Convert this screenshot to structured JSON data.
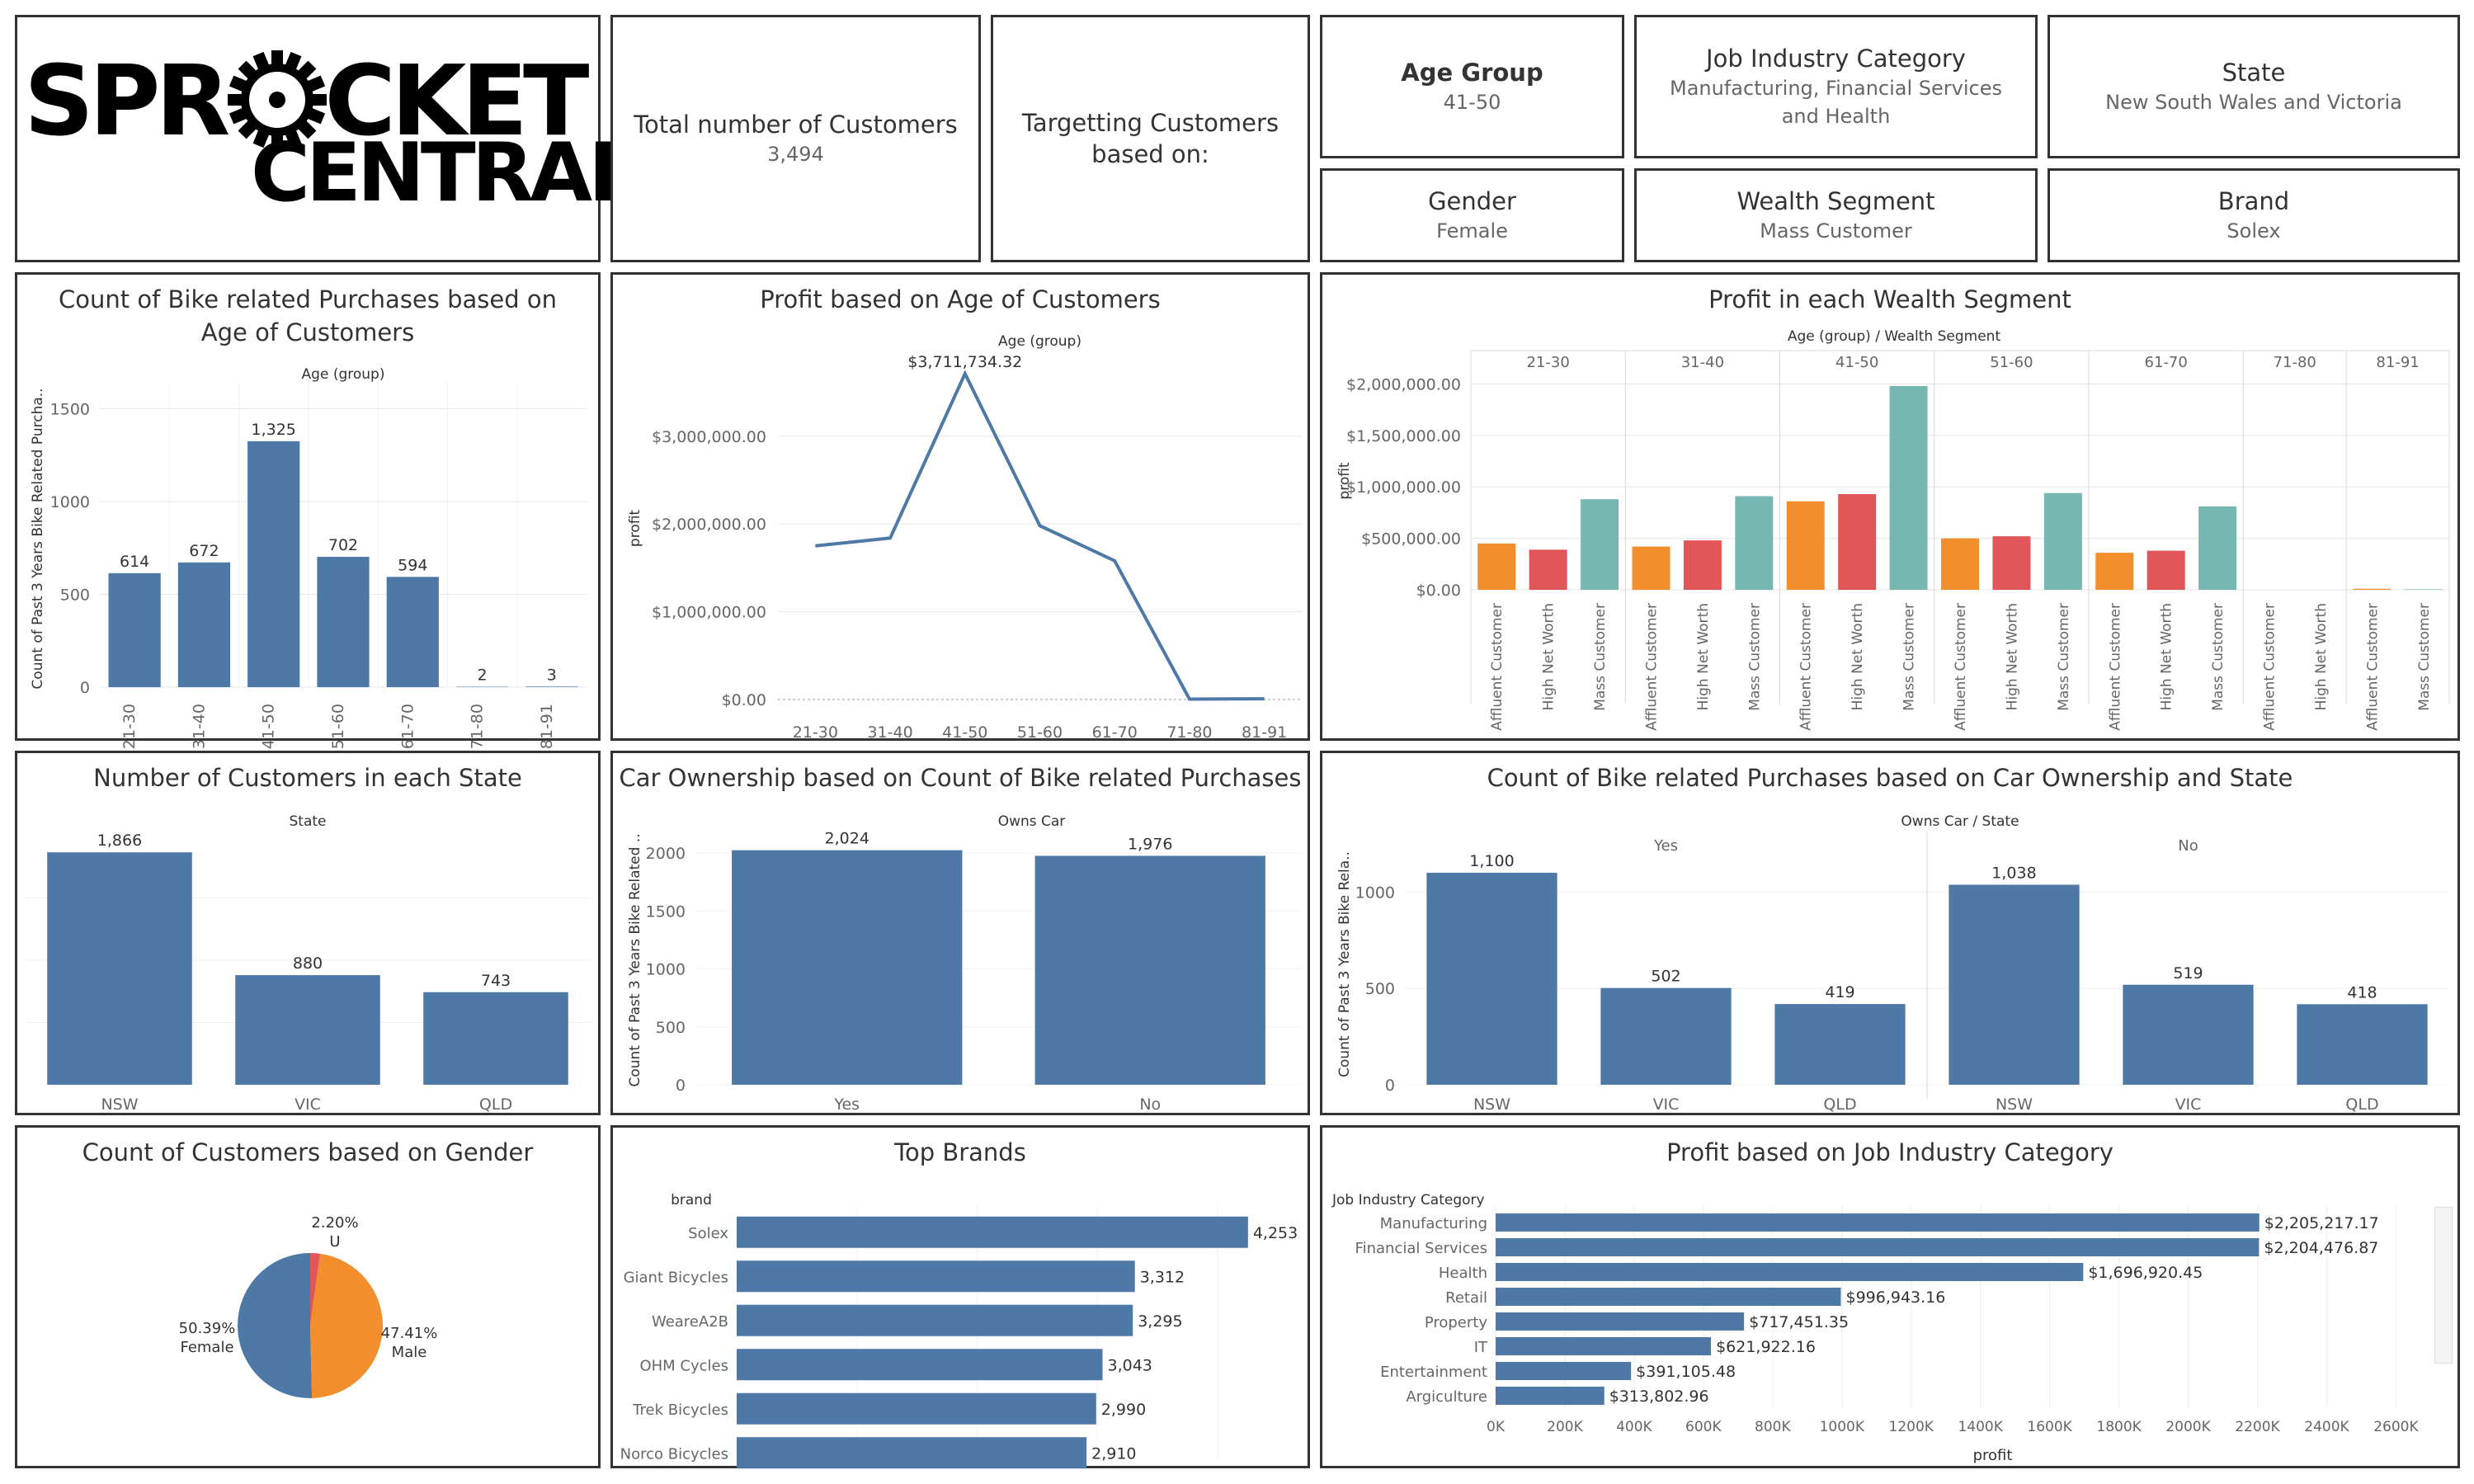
{
  "logo": {
    "line1_left": "SPR",
    "line1_right": "CKET",
    "line2": "CENTRAL"
  },
  "kpis": {
    "total_customers": {
      "label": "Total number of Customers",
      "value": "3,494"
    },
    "targeting": {
      "label": "Targetting Customers based on:"
    },
    "age_group": {
      "label": "Age Group",
      "value": "41-50"
    },
    "job_industry": {
      "label": "Job Industry Category",
      "value": "Manufacturing, Financial Services and Health"
    },
    "state": {
      "label": "State",
      "value": "New South Wales and Victoria"
    },
    "gender": {
      "label": "Gender",
      "value": "Female"
    },
    "wealth": {
      "label": "Wealth Segment",
      "value": "Mass Customer"
    },
    "brand": {
      "label": "Brand",
      "value": "Solex"
    }
  },
  "colors": {
    "blue": "#4e79a7",
    "orange": "#f28e2b",
    "red": "#e15759",
    "teal": "#76b7b2",
    "gridline": "#e6e6e6",
    "border": "#333333"
  },
  "chart_data": [
    {
      "id": "age_purchases",
      "type": "bar",
      "title": "Count of Bike related Purchases based on Age of Customers",
      "xlabel": "Age (group)",
      "ylabel": "Count of Past 3 Years Bike Related Purcha..",
      "categories": [
        "21-30",
        "31-40",
        "41-50",
        "51-60",
        "61-70",
        "71-80",
        "81-91"
      ],
      "values": [
        614,
        672,
        1325,
        702,
        594,
        2,
        3
      ],
      "value_labels": [
        "614",
        "672",
        "1,325",
        "702",
        "594",
        "2",
        "3"
      ],
      "yticks": [
        0,
        500,
        1000,
        1500
      ],
      "ytick_labels": [
        "0",
        "500",
        "1000",
        "1500"
      ],
      "ylim": [
        0,
        1600
      ]
    },
    {
      "id": "profit_age",
      "type": "line",
      "title": "Profit based on Age of Customers",
      "xlabel": "Age (group)",
      "ylabel": "profit",
      "categories": [
        "21-30",
        "31-40",
        "41-50",
        "51-60",
        "61-70",
        "71-80",
        "81-91"
      ],
      "values": [
        1750000,
        1840000,
        3711734.32,
        1980000,
        1580000,
        5000,
        8000
      ],
      "max_label": "$3,711,734.32",
      "yticks": [
        0,
        1000000,
        2000000,
        3000000
      ],
      "ytick_labels": [
        "$0.00",
        "$1,000,000.00",
        "$2,000,000.00",
        "$3,000,000.00"
      ],
      "ylim": [
        0,
        3900000
      ]
    },
    {
      "id": "profit_wealth",
      "type": "bar",
      "title": "Profit in each Wealth Segment",
      "xlabel": "Age (group)  /  Wealth Segment",
      "ylabel": "profit",
      "groups": [
        "21-30",
        "31-40",
        "41-50",
        "51-60",
        "61-70",
        "71-80",
        "81-91"
      ],
      "segments": [
        "Affluent Customer",
        "High Net Worth",
        "Mass Customer"
      ],
      "group_segments": [
        [
          0,
          1,
          2
        ],
        [
          0,
          1,
          2
        ],
        [
          0,
          1,
          2
        ],
        [
          0,
          1,
          2
        ],
        [
          0,
          1,
          2
        ],
        [
          0,
          1
        ],
        [
          0,
          2
        ]
      ],
      "series": [
        {
          "name": "Affluent Customer",
          "values": [
            450000,
            420000,
            860000,
            500000,
            360000,
            0,
            10000
          ]
        },
        {
          "name": "High Net Worth",
          "values": [
            390000,
            480000,
            930000,
            520000,
            380000,
            0,
            0
          ]
        },
        {
          "name": "Mass Customer",
          "values": [
            880000,
            910000,
            1980000,
            940000,
            810000,
            0,
            5000
          ]
        }
      ],
      "yticks": [
        0,
        500000,
        1000000,
        1500000,
        2000000
      ],
      "ytick_labels": [
        "$0.00",
        "$500,000.00",
        "$1,000,000.00",
        "$1,500,000.00",
        "$2,000,000.00"
      ],
      "ylim": [
        0,
        2100000
      ]
    },
    {
      "id": "customers_state",
      "type": "bar",
      "title": "Number of Customers in each State",
      "xlabel": "State",
      "categories": [
        "NSW",
        "VIC",
        "QLD"
      ],
      "values": [
        1866,
        880,
        743
      ],
      "value_labels": [
        "1,866",
        "880",
        "743"
      ],
      "ylim": [
        0,
        2000
      ]
    },
    {
      "id": "car_ownership",
      "type": "bar",
      "title": "Car Ownership based on Count of Bike related Purchases",
      "xlabel": "Owns Car",
      "ylabel": "Count of Past 3 Years Bike Related ..",
      "categories": [
        "Yes",
        "No"
      ],
      "values": [
        2024,
        1976
      ],
      "value_labels": [
        "2,024",
        "1,976"
      ],
      "yticks": [
        0,
        500,
        1000,
        1500,
        2000
      ],
      "ytick_labels": [
        "0",
        "500",
        "1000",
        "1500",
        "2000"
      ],
      "ylim": [
        0,
        2150
      ]
    },
    {
      "id": "car_state",
      "type": "bar",
      "title": "Count of Bike related Purchases based on Car Ownership and State",
      "xlabel": "Owns Car  /  State",
      "ylabel": "Count of Past 3 Years Bike Rela..",
      "groups": [
        "Yes",
        "No"
      ],
      "categories": [
        "NSW",
        "VIC",
        "QLD"
      ],
      "series": [
        {
          "group": "Yes",
          "values": [
            1100,
            502,
            419
          ],
          "value_labels": [
            "1,100",
            "502",
            "419"
          ]
        },
        {
          "group": "No",
          "values": [
            1038,
            519,
            418
          ],
          "value_labels": [
            "1,038",
            "519",
            "418"
          ]
        }
      ],
      "yticks": [
        0,
        500,
        1000
      ],
      "ytick_labels": [
        "0",
        "500",
        "1000"
      ],
      "ylim": [
        0,
        1250
      ]
    },
    {
      "id": "gender",
      "type": "pie",
      "title": "Count of Customers based on Gender",
      "slices": [
        {
          "name": "Female",
          "percent": 50.39,
          "label": "50.39%",
          "color": "#4e79a7"
        },
        {
          "name": "U",
          "percent": 2.2,
          "label": "2.20%",
          "color": "#e15759"
        },
        {
          "name": "Male",
          "percent": 47.41,
          "label": "47.41%",
          "color": "#f28e2b"
        }
      ]
    },
    {
      "id": "top_brands",
      "type": "bar",
      "orientation": "horizontal",
      "title": "Top Brands",
      "ylabel": "brand",
      "categories": [
        "Solex",
        "Giant Bicycles",
        "WeareA2B",
        "OHM Cycles",
        "Trek Bicycles",
        "Norco Bicycles"
      ],
      "values": [
        4253,
        3312,
        3295,
        3043,
        2990,
        2910
      ],
      "value_labels": [
        "4,253",
        "3,312",
        "3,295",
        "3,043",
        "2,990",
        "2,910"
      ],
      "xlim": [
        0,
        4700
      ]
    },
    {
      "id": "profit_industry",
      "type": "bar",
      "orientation": "horizontal",
      "title": "Profit based on Job Industry Category",
      "ylabel": "Job Industry Category",
      "xlabel": "profit",
      "categories": [
        "Manufacturing",
        "Financial Services",
        "Health",
        "Retail",
        "Property",
        "IT",
        "Entertainment",
        "Argiculture"
      ],
      "values": [
        2205217.17,
        2204476.87,
        1696920.45,
        996943.16,
        717451.35,
        621922.16,
        391105.48,
        313802.96
      ],
      "value_labels": [
        "$2,205,217.17",
        "$2,204,476.87",
        "$1,696,920.45",
        "$996,943.16",
        "$717,451.35",
        "$621,922.16",
        "$391,105.48",
        "$313,802.96"
      ],
      "xticks": [
        0,
        200000,
        400000,
        600000,
        800000,
        1000000,
        1200000,
        1400000,
        1600000,
        1800000,
        2000000,
        2200000,
        2400000,
        2600000
      ],
      "xtick_labels": [
        "0K",
        "200K",
        "400K",
        "600K",
        "800K",
        "1000K",
        "1200K",
        "1400K",
        "1600K",
        "1800K",
        "2000K",
        "2200K",
        "2400K",
        "2600K"
      ],
      "xlim": [
        0,
        2680000
      ]
    }
  ]
}
